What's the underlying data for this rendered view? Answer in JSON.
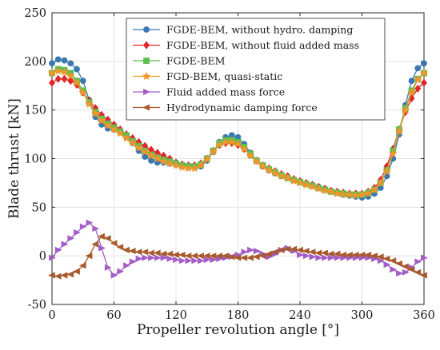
{
  "chart_data": {
    "type": "line",
    "xlabel": "Propeller revolution angle [°]",
    "ylabel": "Blade thrust [kN]",
    "xlim": [
      0,
      360
    ],
    "ylim": [
      -50,
      250
    ],
    "xticks": [
      0,
      60,
      120,
      180,
      240,
      300,
      360
    ],
    "yticks": [
      -50,
      0,
      50,
      100,
      150,
      200,
      250
    ],
    "grid": true,
    "legend_position": "top-right",
    "series": [
      {
        "name": "FGDE-BEM, without hydro. damping",
        "color": "#3a78b2",
        "marker": "circle",
        "x": [
          0,
          6,
          12,
          18,
          24,
          30,
          36,
          42,
          48,
          54,
          60,
          66,
          72,
          78,
          84,
          90,
          96,
          102,
          108,
          114,
          120,
          126,
          132,
          138,
          144,
          150,
          156,
          162,
          168,
          174,
          180,
          186,
          192,
          198,
          204,
          210,
          216,
          222,
          228,
          234,
          240,
          246,
          252,
          258,
          264,
          270,
          276,
          282,
          288,
          294,
          300,
          306,
          312,
          318,
          324,
          330,
          336,
          342,
          348,
          354,
          360
        ],
        "values": [
          198,
          202,
          201,
          198,
          192,
          180,
          160,
          143,
          135,
          131,
          130,
          128,
          122,
          116,
          108,
          102,
          98,
          96,
          96,
          95,
          95,
          93,
          92,
          91,
          92,
          98,
          107,
          117,
          122,
          124,
          122,
          115,
          106,
          98,
          92,
          88,
          85,
          82,
          80,
          78,
          76,
          74,
          73,
          71,
          69,
          67,
          65,
          63,
          62,
          61,
          60,
          61,
          64,
          70,
          82,
          100,
          125,
          155,
          180,
          193,
          198
        ]
      },
      {
        "name": "FGDE-BEM, without fluid added mass",
        "color": "#e0262b",
        "marker": "diamond",
        "x": [
          0,
          6,
          12,
          18,
          24,
          30,
          36,
          42,
          48,
          54,
          60,
          66,
          72,
          78,
          84,
          90,
          96,
          102,
          108,
          114,
          120,
          126,
          132,
          138,
          144,
          150,
          156,
          162,
          168,
          174,
          180,
          186,
          192,
          198,
          204,
          210,
          216,
          222,
          228,
          234,
          240,
          246,
          252,
          258,
          264,
          270,
          276,
          282,
          288,
          294,
          300,
          306,
          312,
          318,
          324,
          330,
          336,
          342,
          348,
          354,
          360
        ],
        "values": [
          178,
          182,
          182,
          180,
          176,
          168,
          160,
          152,
          145,
          140,
          135,
          130,
          125,
          121,
          117,
          113,
          109,
          106,
          103,
          100,
          96,
          94,
          93,
          93,
          95,
          100,
          108,
          114,
          116,
          116,
          114,
          110,
          104,
          98,
          93,
          90,
          87,
          84,
          82,
          79,
          77,
          75,
          73,
          71,
          69,
          67,
          66,
          65,
          64,
          64,
          64,
          66,
          70,
          78,
          92,
          110,
          130,
          148,
          162,
          172,
          178
        ]
      },
      {
        "name": "FGDE-BEM",
        "color": "#5cbf4f",
        "marker": "square",
        "x": [
          0,
          6,
          12,
          18,
          24,
          30,
          36,
          42,
          48,
          54,
          60,
          66,
          72,
          78,
          84,
          90,
          96,
          102,
          108,
          114,
          120,
          126,
          132,
          138,
          144,
          150,
          156,
          162,
          168,
          174,
          180,
          186,
          192,
          198,
          204,
          210,
          216,
          222,
          228,
          234,
          240,
          246,
          252,
          258,
          264,
          270,
          276,
          282,
          288,
          294,
          300,
          306,
          312,
          318,
          324,
          330,
          336,
          342,
          348,
          354,
          360
        ],
        "values": [
          188,
          192,
          191,
          188,
          180,
          170,
          158,
          148,
          141,
          136,
          132,
          128,
          124,
          118,
          113,
          108,
          104,
          101,
          99,
          97,
          95,
          93,
          92,
          92,
          94,
          100,
          108,
          116,
          119,
          119,
          117,
          112,
          105,
          98,
          93,
          89,
          86,
          83,
          80,
          78,
          76,
          74,
          72,
          70,
          68,
          66,
          65,
          64,
          63,
          63,
          63,
          65,
          68,
          75,
          88,
          108,
          130,
          152,
          170,
          182,
          188
        ]
      },
      {
        "name": "FGD-BEM, quasi-static",
        "color": "#f4952b",
        "marker": "star",
        "x": [
          0,
          6,
          12,
          18,
          24,
          30,
          36,
          42,
          48,
          54,
          60,
          66,
          72,
          78,
          84,
          90,
          96,
          102,
          108,
          114,
          120,
          126,
          132,
          138,
          144,
          150,
          156,
          162,
          168,
          174,
          180,
          186,
          192,
          198,
          204,
          210,
          216,
          222,
          228,
          234,
          240,
          246,
          252,
          258,
          264,
          270,
          276,
          282,
          288,
          294,
          300,
          306,
          312,
          318,
          324,
          330,
          336,
          342,
          348,
          354,
          360
        ],
        "values": [
          188,
          190,
          189,
          185,
          178,
          168,
          156,
          146,
          139,
          134,
          130,
          126,
          121,
          116,
          111,
          107,
          103,
          100,
          97,
          95,
          93,
          91,
          90,
          90,
          93,
          99,
          107,
          114,
          117,
          117,
          115,
          110,
          103,
          97,
          92,
          88,
          85,
          82,
          80,
          77,
          75,
          73,
          71,
          69,
          67,
          66,
          64,
          63,
          63,
          62,
          63,
          64,
          68,
          75,
          87,
          105,
          128,
          150,
          168,
          181,
          188
        ]
      },
      {
        "name": "Fluid added mass force",
        "color": "#a45cc7",
        "marker": "triangle-right",
        "x": [
          0,
          6,
          12,
          18,
          24,
          30,
          36,
          42,
          48,
          54,
          60,
          66,
          72,
          78,
          84,
          90,
          96,
          102,
          108,
          114,
          120,
          126,
          132,
          138,
          144,
          150,
          156,
          162,
          168,
          174,
          180,
          186,
          192,
          198,
          204,
          210,
          216,
          222,
          228,
          234,
          240,
          246,
          252,
          258,
          264,
          270,
          276,
          282,
          288,
          294,
          300,
          306,
          312,
          318,
          324,
          330,
          336,
          342,
          348,
          354,
          360
        ],
        "values": [
          -2,
          6,
          12,
          18,
          24,
          30,
          34,
          28,
          8,
          -12,
          -20,
          -16,
          -10,
          -6,
          -3,
          -2,
          -2,
          -2,
          -2,
          -3,
          -4,
          -5,
          -5,
          -5,
          -5,
          -4,
          -4,
          -3,
          -2,
          -1,
          1,
          4,
          6,
          5,
          2,
          -1,
          2,
          6,
          8,
          5,
          1,
          0,
          -1,
          -2,
          -2,
          -2,
          -2,
          -2,
          -2,
          -2,
          -2,
          -2,
          -3,
          -5,
          -9,
          -14,
          -18,
          -17,
          -12,
          -6,
          -2
        ]
      },
      {
        "name": "Hydrodynamic damping force",
        "color": "#a85a2c",
        "marker": "triangle-left",
        "x": [
          0,
          6,
          12,
          18,
          24,
          30,
          36,
          42,
          48,
          54,
          60,
          66,
          72,
          78,
          84,
          90,
          96,
          102,
          108,
          114,
          120,
          126,
          132,
          138,
          144,
          150,
          156,
          162,
          168,
          174,
          180,
          186,
          192,
          198,
          204,
          210,
          216,
          222,
          228,
          234,
          240,
          246,
          252,
          258,
          264,
          270,
          276,
          282,
          288,
          294,
          300,
          306,
          312,
          318,
          324,
          330,
          336,
          342,
          348,
          354,
          360
        ],
        "values": [
          -20,
          -21,
          -20,
          -19,
          -16,
          -10,
          0,
          12,
          20,
          18,
          13,
          9,
          6,
          5,
          4,
          4,
          3,
          3,
          2,
          2,
          1,
          1,
          0,
          0,
          0,
          0,
          0,
          0,
          0,
          -1,
          -2,
          -2,
          -2,
          -1,
          0,
          2,
          4,
          6,
          7,
          7,
          6,
          5,
          4,
          3,
          3,
          2,
          2,
          1,
          1,
          1,
          1,
          1,
          0,
          -1,
          -3,
          -5,
          -8,
          -11,
          -14,
          -17,
          -20
        ]
      }
    ]
  }
}
